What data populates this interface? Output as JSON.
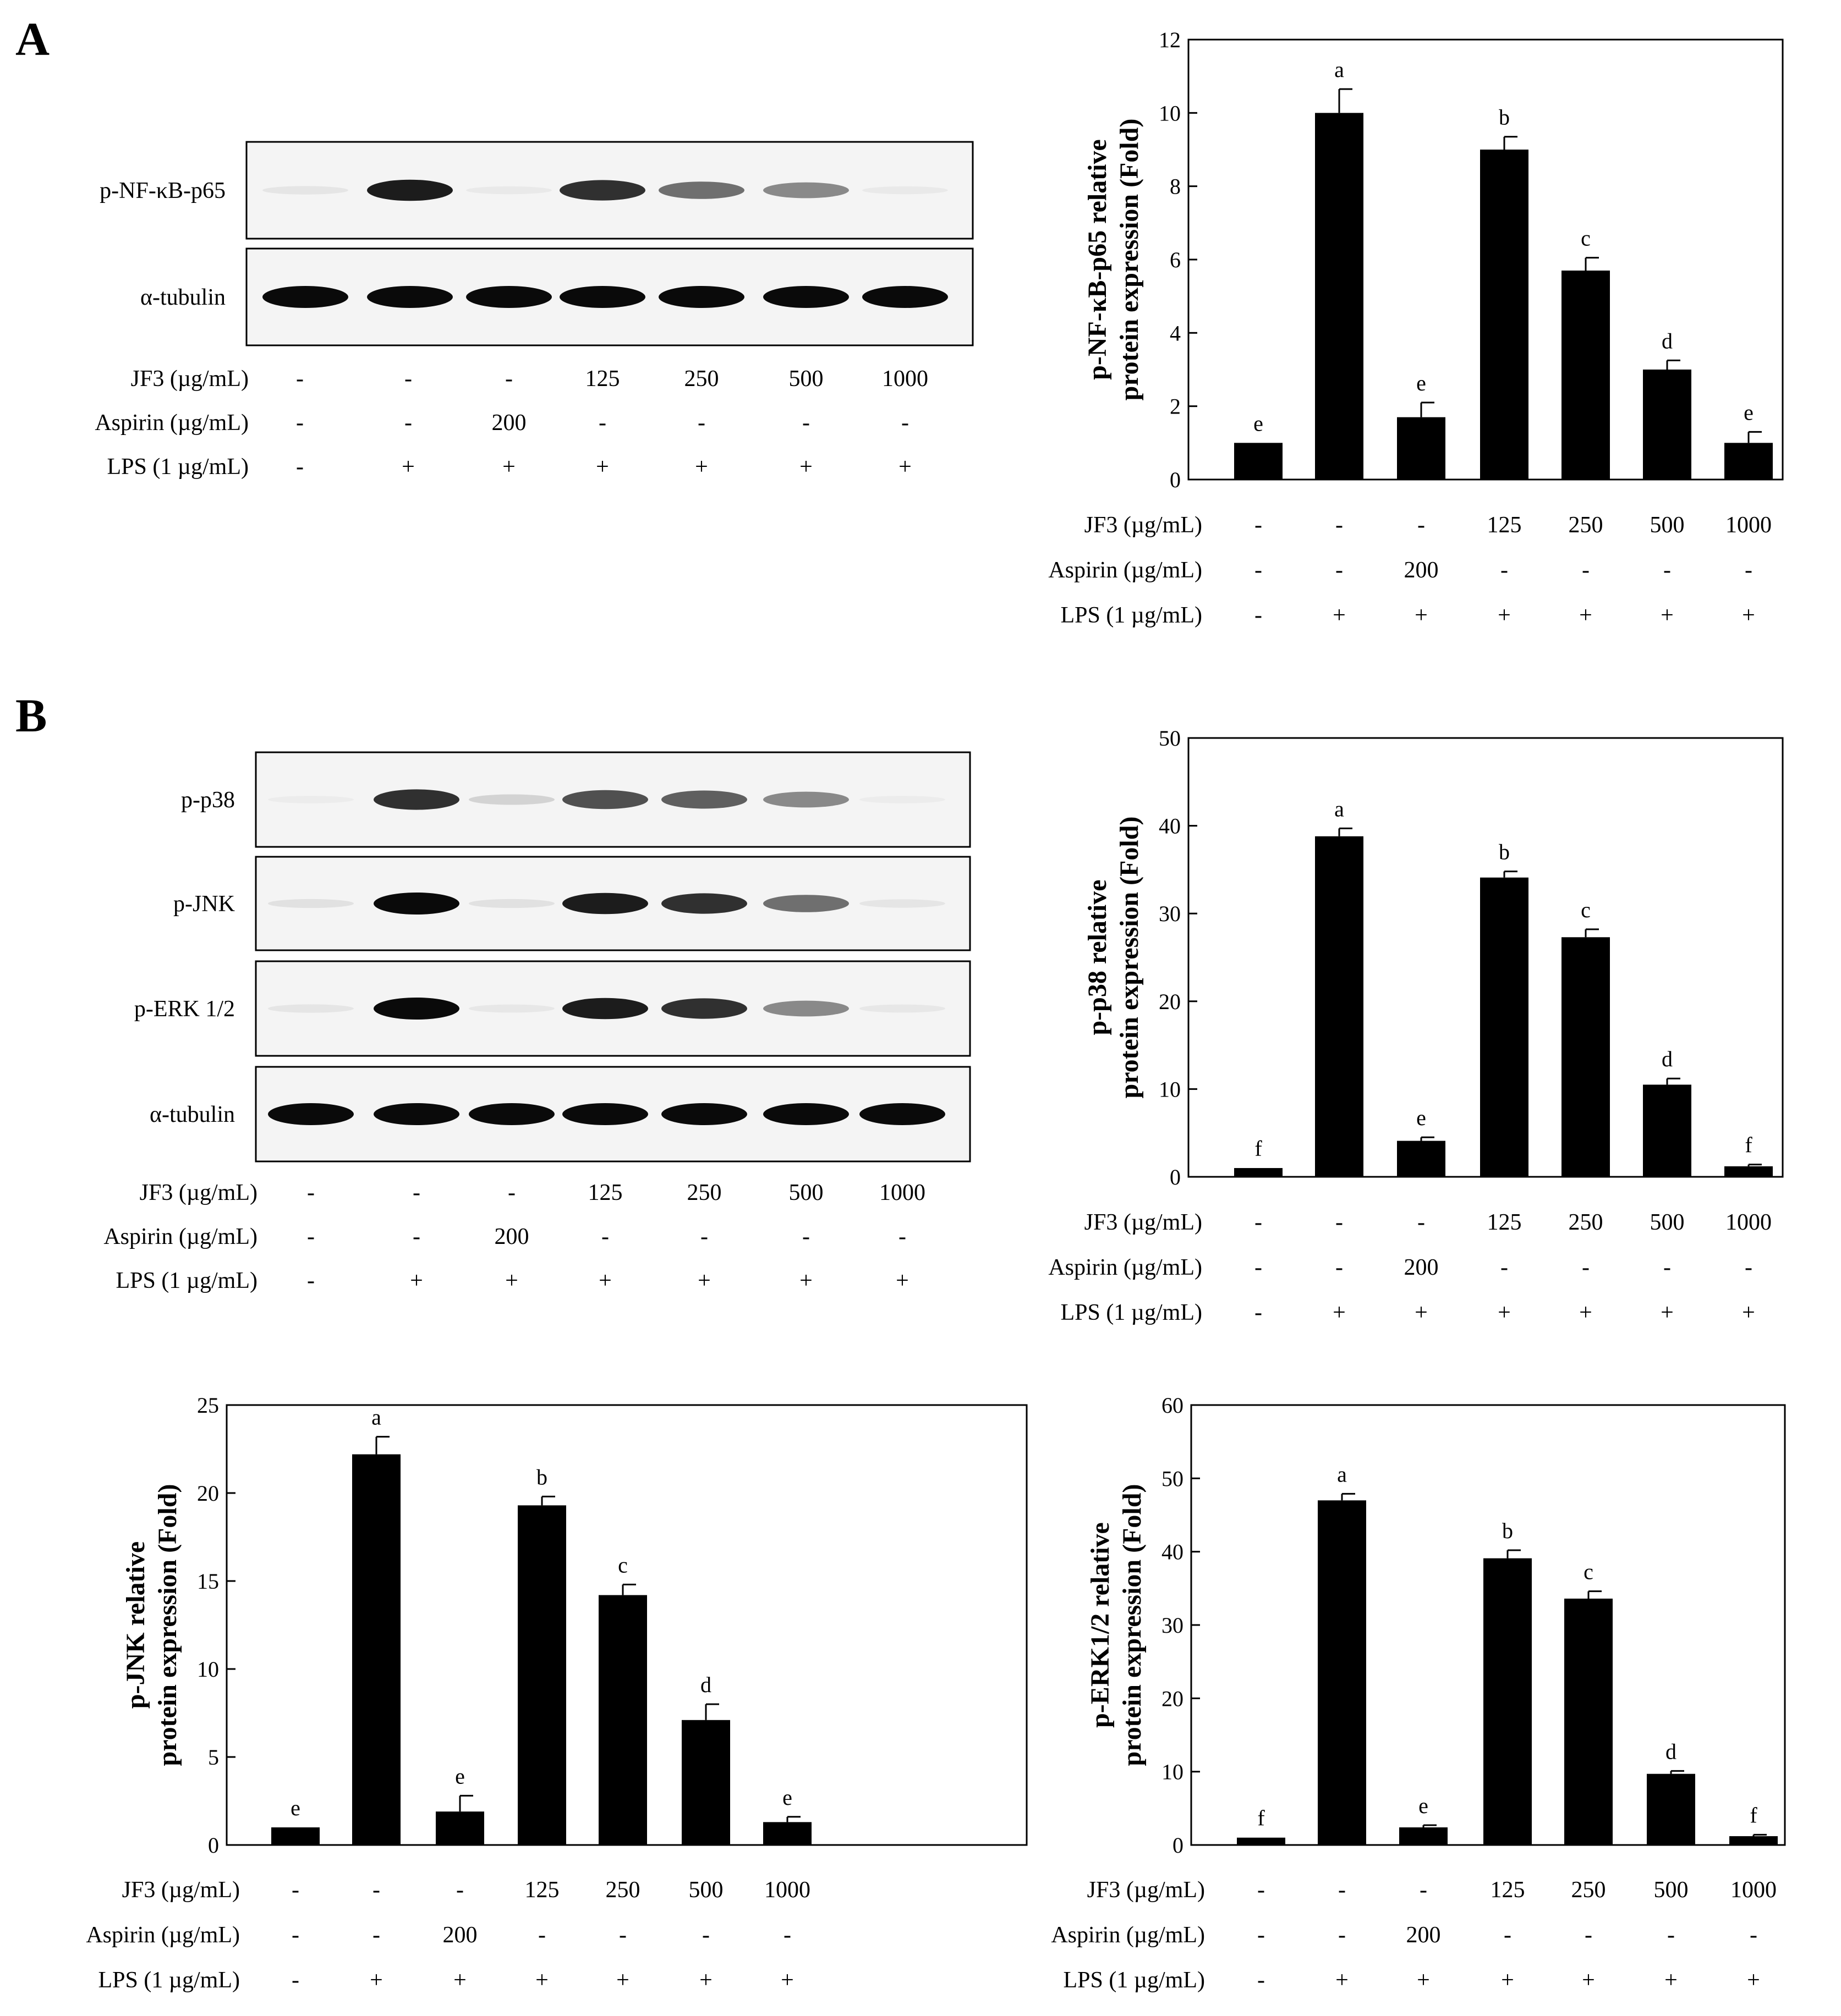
{
  "panels": [
    {
      "id": "A",
      "letter": "A"
    },
    {
      "id": "B",
      "letter": "B"
    }
  ],
  "conditions": {
    "rows": [
      {
        "label": "JF3 (µg/mL)",
        "values": [
          "-",
          "-",
          "-",
          "125",
          "250",
          "500",
          "1000"
        ]
      },
      {
        "label": "Aspirin (µg/mL)",
        "values": [
          "-",
          "-",
          "200",
          "-",
          "-",
          "-",
          "-"
        ]
      },
      {
        "label": "LPS (1 µg/mL)",
        "values": [
          "-",
          "+",
          "+",
          "+",
          "+",
          "+",
          "+"
        ]
      }
    ]
  },
  "blots": [
    {
      "panel": "A",
      "lanes": [
        {
          "label": "p-NF-κB-p65",
          "band_intensity": [
            0.12,
            0.95,
            0.08,
            0.9,
            0.7,
            0.6,
            0.08
          ]
        },
        {
          "label": "α-tubulin",
          "band_intensity": [
            1,
            1,
            1,
            1,
            1,
            1,
            1
          ]
        }
      ]
    },
    {
      "panel": "B",
      "lanes": [
        {
          "label": "p-p38",
          "band_intensity": [
            0.05,
            0.9,
            0.25,
            0.8,
            0.75,
            0.6,
            0.05
          ]
        },
        {
          "label": "p-JNK",
          "band_intensity": [
            0.15,
            1,
            0.15,
            0.95,
            0.9,
            0.7,
            0.12
          ]
        },
        {
          "label": "p-ERK 1/2",
          "band_intensity": [
            0.12,
            1,
            0.1,
            0.95,
            0.9,
            0.6,
            0.1
          ]
        },
        {
          "label": "α-tubulin",
          "band_intensity": [
            1,
            1,
            1,
            1,
            1,
            1,
            1
          ]
        }
      ]
    }
  ],
  "chart_data": [
    {
      "type": "bar",
      "panel": "A",
      "ylabel": [
        "p-NF-κB-p65 relative",
        "protein expression (Fold)"
      ],
      "ylim": [
        0,
        12
      ],
      "yticks": [
        0,
        2,
        4,
        6,
        8,
        10,
        12
      ],
      "values": [
        1.0,
        10.0,
        1.7,
        9.0,
        5.7,
        3.0,
        1.0
      ],
      "errors": [
        0.0,
        0.65,
        0.4,
        0.35,
        0.35,
        0.25,
        0.3
      ],
      "significance": [
        "e",
        "a",
        "e",
        "b",
        "c",
        "d",
        "e"
      ]
    },
    {
      "type": "bar",
      "panel": "B",
      "ylabel": [
        "p-p38 relative",
        "protein expression (Fold)"
      ],
      "ylim": [
        0,
        50
      ],
      "yticks": [
        0,
        10,
        20,
        30,
        40,
        50
      ],
      "values": [
        1.0,
        38.8,
        4.1,
        34.1,
        27.3,
        10.5,
        1.2
      ],
      "errors": [
        0.0,
        0.9,
        0.4,
        0.7,
        0.9,
        0.7,
        0.2
      ],
      "significance": [
        "f",
        "a",
        "e",
        "b",
        "c",
        "d",
        "f"
      ]
    },
    {
      "type": "bar",
      "panel": "B",
      "ylabel": [
        "p-JNK relative",
        "protein expression (Fold)"
      ],
      "ylim": [
        0,
        25
      ],
      "yticks": [
        0,
        5,
        10,
        15,
        20,
        25
      ],
      "values": [
        1.0,
        22.2,
        1.9,
        19.3,
        14.2,
        7.1,
        1.3
      ],
      "errors": [
        0.0,
        1.0,
        0.9,
        0.5,
        0.6,
        0.9,
        0.3
      ],
      "significance": [
        "e",
        "a",
        "e",
        "b",
        "c",
        "d",
        "e"
      ]
    },
    {
      "type": "bar",
      "panel": "B",
      "ylabel": [
        "p-ERK1/2 relative",
        "protein expression (Fold)"
      ],
      "ylim": [
        0,
        60
      ],
      "yticks": [
        0,
        10,
        20,
        30,
        40,
        50,
        60
      ],
      "values": [
        1.0,
        47.0,
        2.4,
        39.1,
        33.6,
        9.7,
        1.2
      ],
      "errors": [
        0.0,
        0.9,
        0.3,
        1.1,
        1.0,
        0.4,
        0.2
      ],
      "significance": [
        "f",
        "a",
        "e",
        "b",
        "c",
        "d",
        "f"
      ]
    }
  ]
}
